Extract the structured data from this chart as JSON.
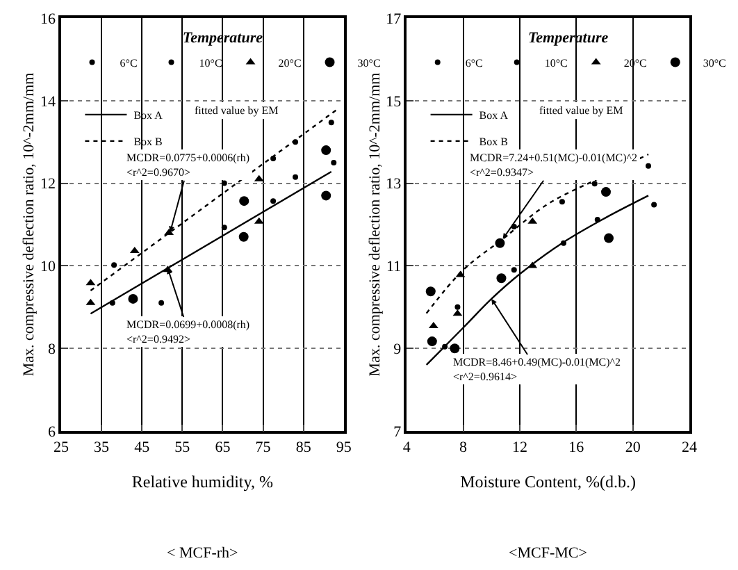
{
  "chart_data": [
    {
      "type": "scatter",
      "xlabel": "Relative humidity, %",
      "ylabel": "Max. compressive deflection ratio, 10^-2mm/mm",
      "legend_title": "Temperature",
      "legend": "top",
      "xlim": [
        25,
        95
      ],
      "xticks": [
        25,
        35,
        45,
        55,
        65,
        75,
        85,
        95
      ],
      "ylim": [
        6,
        16
      ],
      "yticks": [
        6,
        8,
        10,
        12,
        14,
        16
      ],
      "grid": true,
      "series": [
        {
          "name": "6°C",
          "color": "#000000",
          "marker": "circle",
          "x": [
            92.5,
            83,
            77.5,
            65.4,
            37.7,
            49.8
          ],
          "values": [
            12.5,
            12.15,
            11.57,
            10.93,
            9.1,
            9.1
          ]
        },
        {
          "name": "10°C",
          "color": "#000000",
          "marker": "circle",
          "x": [
            91.9,
            83,
            77.5,
            65.4,
            38.1
          ],
          "values": [
            13.47,
            13.0,
            12.6,
            12.0,
            10.02
          ]
        },
        {
          "name": "20°C",
          "color": "#000000",
          "marker": "triangle",
          "x": [
            74,
            74,
            51.7,
            43.2,
            32.3,
            32.3,
            51.4
          ],
          "values": [
            12.1,
            11.07,
            10.8,
            10.36,
            9.58,
            9.1,
            9.9
          ]
        },
        {
          "name": "30°C",
          "color": "#000000",
          "marker": "circle",
          "x": [
            90.6,
            90.6,
            70.3,
            70.2,
            42.8
          ],
          "values": [
            12.8,
            11.7,
            11.57,
            10.7,
            9.2
          ]
        },
        {
          "name": "Box A",
          "type": "line",
          "color": "#000000",
          "marker": "none",
          "line_style": "solid",
          "x": [
            32.3,
            91.9
          ],
          "values": [
            8.84,
            12.28
          ]
        },
        {
          "name": "Box B",
          "type": "line",
          "color": "#000000",
          "marker": "none",
          "line_style": "dotted",
          "x": [
            32.3,
            93.5
          ],
          "values": [
            9.4,
            13.8
          ]
        }
      ],
      "annotations": [
        "fitted value by EM",
        "< MCF-rh>",
        {
          "text": "MCDR=0.0775+0.0006(rh)\n<r^2=0.9670>",
          "x": 52,
          "y": 10.82
        },
        {
          "text": "MCDR=0.0699+0.0008(rh)\n<r^2=0.9492>",
          "x": 51.4,
          "y": 9.94
        }
      ]
    },
    {
      "type": "scatter",
      "xlabel": "Moisture Content, %(d.b.)",
      "ylabel": "Max. compressive deflection ratio, 10^-2mm/mm",
      "legend_title": "Temperature",
      "legend": "top",
      "xlim": [
        4,
        24
      ],
      "xticks": [
        4,
        8,
        12,
        16,
        20,
        24
      ],
      "ylim": [
        7,
        17
      ],
      "yticks": [
        7,
        9,
        11,
        13,
        15,
        17
      ],
      "grid": true,
      "series": [
        {
          "name": "6°C",
          "color": "#000000",
          "marker": "circle",
          "x": [
            21.5,
            17.5,
            15.1,
            11.6,
            6.7
          ],
          "values": [
            12.48,
            12.12,
            11.55,
            10.9,
            9.04
          ]
        },
        {
          "name": "10°C",
          "color": "#000000",
          "marker": "circle",
          "x": [
            21.1,
            17.3,
            15.0,
            11.6,
            7.6
          ],
          "values": [
            13.42,
            12.99,
            12.55,
            11.95,
            10.0
          ]
        },
        {
          "name": "20°C",
          "color": "#000000",
          "marker": "triangle",
          "x": [
            12.9,
            12.9,
            7.8,
            7.6,
            5.9
          ],
          "values": [
            12.07,
            11.0,
            10.78,
            9.84,
            9.54
          ]
        },
        {
          "name": "30°C",
          "color": "#000000",
          "marker": "circle",
          "x": [
            18.1,
            18.3,
            10.6,
            10.7,
            5.7,
            5.8,
            7.4
          ],
          "values": [
            12.79,
            11.67,
            11.55,
            10.7,
            10.38,
            9.17,
            9.0
          ]
        },
        {
          "name": "Box A",
          "type": "line",
          "color": "#000000",
          "marker": "none",
          "line_style": "solid",
          "x": [
            5.4,
            8,
            10,
            12,
            15,
            18,
            21.1
          ],
          "values": [
            8.6,
            9.5,
            10.2,
            10.8,
            11.55,
            12.15,
            12.7
          ]
        },
        {
          "name": "Box B",
          "type": "line",
          "color": "#000000",
          "marker": "none",
          "line_style": "dotted",
          "x": [
            5.4,
            8,
            10.8,
            14,
            17.5,
            21.1
          ],
          "values": [
            9.85,
            10.9,
            11.65,
            12.5,
            13.1,
            13.7
          ]
        }
      ],
      "annotations": [
        "fitted value by EM",
        "<MCF-MC>",
        {
          "text": "MCDR=7.24+0.51(MC)-0.01(MC)^2\n<r^2=0.9347>",
          "x": 10.8,
          "y": 11.65
        },
        {
          "text": "MCDR=8.46+0.49(MC)-0.01(MC)^2\n<r^2=0.9614>",
          "x": 10,
          "y": 10.2
        }
      ]
    }
  ]
}
